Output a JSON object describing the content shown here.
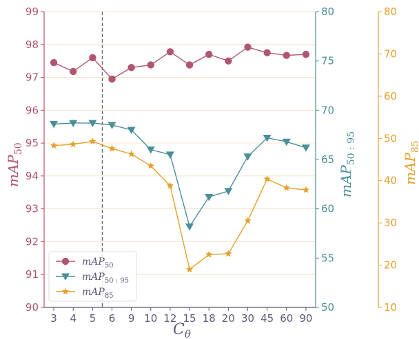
{
  "colors": {
    "map50": "#b0566e",
    "map50_95": "#4a8f99",
    "map85": "#e6a02b",
    "axis_text_x": "#5a5a7a",
    "grid": "#f5e6cc",
    "vline": "#666666"
  },
  "chart_data": {
    "type": "line",
    "xlabel": "C",
    "xlabel_sub": "θ",
    "categories": [
      "3",
      "4",
      "5",
      "6",
      "9",
      "10",
      "12",
      "15",
      "18",
      "20",
      "30",
      "45",
      "60",
      "90"
    ],
    "vline_between": [
      "5",
      "6"
    ],
    "grid": true,
    "legend_position": "lower-left",
    "axes": [
      {
        "id": "left",
        "label": "mAP",
        "label_sub": "50",
        "ylim": [
          90,
          99
        ],
        "ticks": [
          90,
          91,
          92,
          93,
          94,
          95,
          96,
          97,
          98,
          99
        ]
      },
      {
        "id": "right1",
        "label": "mAP",
        "label_sub": "50 : 95",
        "ylim": [
          50,
          80
        ],
        "ticks": [
          50,
          55,
          60,
          65,
          70,
          75,
          80
        ]
      },
      {
        "id": "right2",
        "label": "mAP",
        "label_sub": "85",
        "ylim": [
          10,
          80
        ],
        "ticks": [
          10,
          20,
          30,
          40,
          50,
          60,
          70,
          80
        ]
      }
    ],
    "series": [
      {
        "key": "map50",
        "name": "mAP",
        "name_sub": "50",
        "axis": "left",
        "marker": "circle",
        "values": [
          97.45,
          97.18,
          97.6,
          96.95,
          97.3,
          97.38,
          97.78,
          97.38,
          97.7,
          97.5,
          97.92,
          97.75,
          97.67,
          97.7
        ]
      },
      {
        "key": "map50_95",
        "name": "mAP",
        "name_sub": "50 : 95",
        "axis": "right1",
        "marker": "triangle-down",
        "values": [
          68.6,
          68.7,
          68.7,
          68.5,
          68.0,
          66.0,
          65.5,
          58.2,
          61.2,
          61.8,
          65.3,
          67.2,
          66.8,
          66.2
        ]
      },
      {
        "key": "map85",
        "name": "mAP",
        "name_sub": "85",
        "axis": "right2",
        "marker": "star",
        "values": [
          48.3,
          48.6,
          49.3,
          47.6,
          46.3,
          43.5,
          38.8,
          19.0,
          22.5,
          22.7,
          30.5,
          40.4,
          38.3,
          37.8
        ]
      }
    ]
  }
}
